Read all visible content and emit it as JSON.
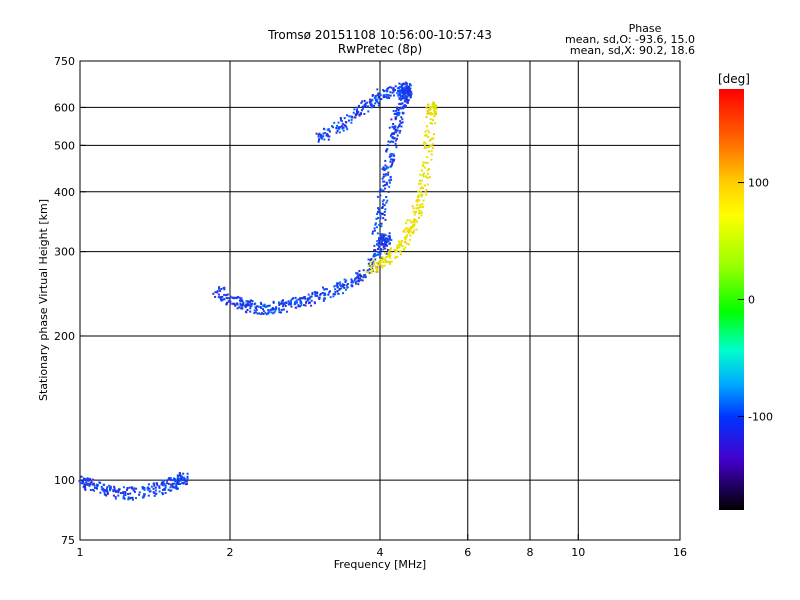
{
  "chart_data": {
    "type": "scatter",
    "title": "Tromsø 20151108 10:56:00-10:57:43",
    "subtitle": "RwPretec (8p)",
    "xlabel": "Frequency [MHz]",
    "ylabel": "Stationary phase Virtual Height [km]",
    "x_scale": "log2",
    "y_scale": "log",
    "xlim": [
      1,
      16
    ],
    "ylim": [
      75,
      750
    ],
    "x_ticks": [
      1,
      2,
      4,
      6,
      8,
      10,
      16
    ],
    "y_ticks": [
      75,
      100,
      200,
      300,
      400,
      500,
      600,
      750
    ],
    "vgrid_lines": [
      2,
      4,
      6,
      8,
      10
    ],
    "hgrid_lines": [
      100,
      200,
      300,
      400,
      500,
      600
    ],
    "grid": true,
    "phase_box": {
      "title": "Phase",
      "line1": "mean, sd,O: -93.6, 15.0",
      "line2": "mean, sd,X:  90.2, 18.6"
    },
    "colorbar": {
      "label": "[deg]",
      "range": [
        -180,
        180
      ],
      "ticks": [
        100,
        0,
        -100
      ],
      "placement": "right"
    },
    "clusters": [
      {
        "name": "o-trace-lower",
        "color": "#1a3aff",
        "x": [
          1.88,
          2.0,
          2.15,
          2.3,
          2.5,
          2.75,
          3.0,
          3.3,
          3.6,
          3.9,
          4.1
        ],
        "y": [
          250,
          238,
          232,
          229,
          231,
          236,
          243,
          252,
          265,
          285,
          320
        ]
      },
      {
        "name": "o-trace-f2",
        "color": "#1a3aff",
        "x": [
          3.9,
          4.0,
          4.1,
          4.2,
          4.3,
          4.4,
          4.5
        ],
        "y": [
          300,
          360,
          430,
          500,
          560,
          610,
          650
        ]
      },
      {
        "name": "o-trace-upper",
        "color": "#1a3aff",
        "x": [
          3.0,
          3.3,
          3.6,
          3.9,
          4.2,
          4.5
        ],
        "y": [
          520,
          550,
          590,
          630,
          655,
          660
        ]
      },
      {
        "name": "x-trace",
        "color": "#e8e800",
        "x": [
          3.8,
          4.1,
          4.4,
          4.6,
          4.8,
          4.95,
          5.05
        ],
        "y": [
          275,
          290,
          310,
          340,
          380,
          460,
          600
        ]
      },
      {
        "name": "e-region",
        "color": "#1a3aff",
        "x": [
          1.0,
          1.05,
          1.15,
          1.25,
          1.4,
          1.5,
          1.6
        ],
        "y": [
          100,
          98,
          95,
          94,
          96,
          98,
          101
        ]
      }
    ]
  }
}
